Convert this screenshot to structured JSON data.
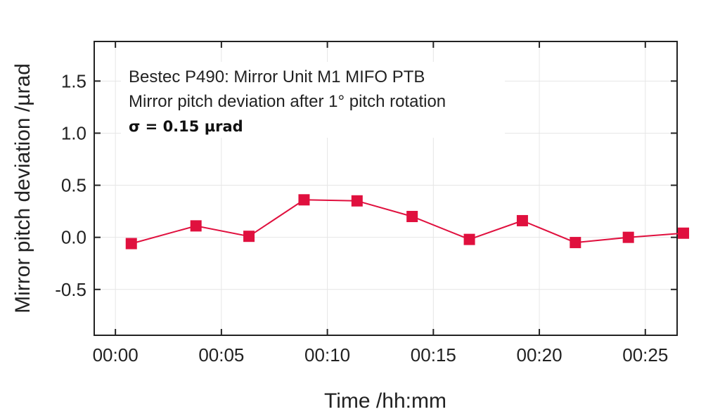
{
  "chart_data": {
    "type": "line",
    "annotation_lines": [
      "Bestec P490: Mirror Unit M1 MIFO PTB",
      "Mirror pitch deviation after 1° pitch rotation",
      "σ = 0.15 µrad"
    ],
    "xlabel": "Time /hh:mm",
    "ylabel": "Mirror pitch deviation /µrad",
    "x_ticks": [
      "00:00",
      "00:05",
      "00:10",
      "00:15",
      "00:20",
      "00:25"
    ],
    "y_ticks": [
      "1.5",
      "1.0",
      "0.5",
      "0.0",
      "-0.5"
    ],
    "x_tick_minutes": [
      0,
      5,
      10,
      15,
      20,
      25
    ],
    "y_tick_values": [
      1.5,
      1.0,
      0.5,
      0.0,
      -0.5
    ],
    "xlim_minutes": [
      -1.0,
      26.5
    ],
    "ylim": [
      -0.94,
      1.88
    ],
    "grid": true,
    "marker": "square",
    "series": [
      {
        "x_minutes": [
          0.75,
          3.8,
          6.3,
          8.9,
          11.4,
          14.0,
          16.7,
          19.2,
          21.7,
          24.2,
          26.8
        ],
        "values": [
          -0.06,
          0.11,
          0.01,
          0.36,
          0.35,
          0.2,
          -0.02,
          0.16,
          -0.05,
          0.0,
          0.04
        ]
      }
    ],
    "colors": {
      "series": "#e0103e",
      "grid": "#e6e6e6",
      "axis": "#222222"
    }
  }
}
